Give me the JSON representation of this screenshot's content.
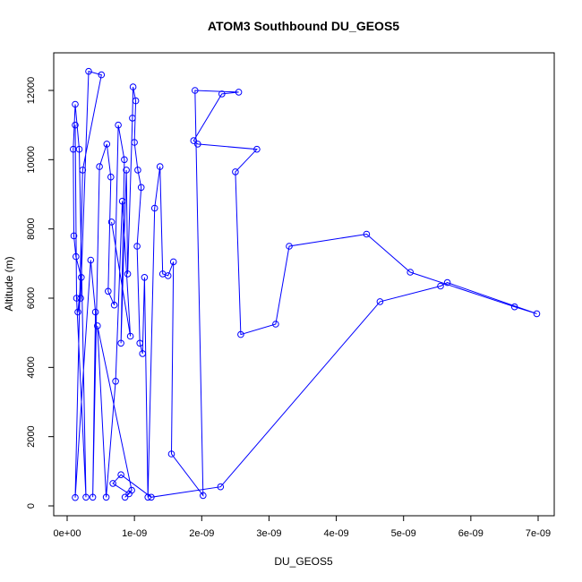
{
  "chart_data": {
    "type": "line",
    "title": "ATOM3 Southbound DU_GEOS5",
    "xlabel": "DU_GEOS5",
    "ylabel": "Altitude (m)",
    "xlim": [
      0,
      7e-09
    ],
    "ylim": [
      0,
      12600
    ],
    "x_ticks": [
      0,
      1e-09,
      2e-09,
      3e-09,
      4e-09,
      5e-09,
      6e-09,
      7e-09
    ],
    "x_tick_labels": [
      "0e+00",
      "1e-09",
      "2e-09",
      "3e-09",
      "4e-09",
      "5e-09",
      "6e-09",
      "7e-09"
    ],
    "y_ticks": [
      0,
      2000,
      4000,
      6000,
      8000,
      10000,
      12000
    ],
    "y_tick_labels": [
      "0",
      "2000",
      "4000",
      "6000",
      "8000",
      "10000",
      "12000"
    ],
    "grid": false,
    "legend": "none",
    "series_color": "#0000ff",
    "marker": "open-circle",
    "series": [
      {
        "points": [
          [
            1.2e-10,
            11000
          ],
          [
            1.4e-10,
            6000
          ],
          [
            2.8e-10,
            250
          ],
          [
            1.8e-10,
            10300
          ],
          [
            1.2e-10,
            11600
          ],
          [
            9e-11,
            10300
          ],
          [
            1e-10,
            7800
          ],
          [
            1.3e-10,
            7200
          ],
          [
            2.1e-10,
            6600
          ],
          [
            1.6e-10,
            5600
          ],
          [
            2e-10,
            6000
          ],
          [
            3.2e-10,
            12550
          ],
          [
            5.1e-10,
            12450
          ],
          [
            2.3e-10,
            9700
          ],
          [
            1.2e-10,
            240
          ],
          [
            3.5e-10,
            7100
          ],
          [
            4.2e-10,
            5600
          ],
          [
            3.8e-10,
            250
          ],
          [
            4.8e-10,
            9800
          ],
          [
            5.9e-10,
            10450
          ],
          [
            6.5e-10,
            9500
          ],
          [
            6.1e-10,
            6200
          ],
          [
            7e-10,
            5800
          ],
          [
            7.6e-10,
            11000
          ],
          [
            8.5e-10,
            10000
          ],
          [
            8e-10,
            4700
          ],
          [
            8.8e-10,
            9700
          ],
          [
            9e-10,
            6700
          ],
          [
            9.7e-10,
            11200
          ],
          [
            9.8e-10,
            12100
          ],
          [
            1.02e-09,
            11700
          ],
          [
            1e-09,
            10500
          ],
          [
            1.05e-09,
            9700
          ],
          [
            1.1e-09,
            9200
          ],
          [
            1.04e-09,
            7500
          ],
          [
            1.08e-09,
            4700
          ],
          [
            1.12e-09,
            4400
          ],
          [
            1.15e-09,
            6600
          ],
          [
            1.2e-09,
            250
          ],
          [
            1.3e-09,
            8600
          ],
          [
            1.38e-09,
            9800
          ],
          [
            1.42e-09,
            6700
          ],
          [
            1.5e-09,
            6650
          ],
          [
            1.58e-09,
            7050
          ],
          [
            1.55e-09,
            1500
          ],
          [
            2.02e-09,
            300
          ],
          [
            1.9e-09,
            12000
          ],
          [
            2.55e-09,
            11950
          ],
          [
            2.3e-09,
            11900
          ],
          [
            1.88e-09,
            10550
          ],
          [
            1.94e-09,
            10450
          ],
          [
            2.82e-09,
            10300
          ],
          [
            2.5e-09,
            9650
          ],
          [
            2.58e-09,
            4950
          ],
          [
            3.1e-09,
            5250
          ],
          [
            3.3e-09,
            7500
          ],
          [
            4.45e-09,
            7850
          ],
          [
            5.1e-09,
            6750
          ],
          [
            6.65e-09,
            5750
          ],
          [
            6.98e-09,
            5550
          ],
          [
            5.65e-09,
            6450
          ],
          [
            5.55e-09,
            6350
          ],
          [
            4.65e-09,
            5900
          ],
          [
            2.28e-09,
            550
          ],
          [
            1.25e-09,
            250
          ],
          [
            8e-10,
            900
          ],
          [
            6.8e-10,
            650
          ],
          [
            9.2e-10,
            350
          ],
          [
            8.6e-10,
            250
          ],
          [
            9.6e-10,
            450
          ],
          [
            4.5e-10,
            5200
          ],
          [
            5.8e-10,
            250
          ],
          [
            7.2e-10,
            3600
          ],
          [
            8.2e-10,
            8800
          ],
          [
            9.4e-10,
            4900
          ],
          [
            6.6e-10,
            8200
          ]
        ]
      }
    ]
  }
}
